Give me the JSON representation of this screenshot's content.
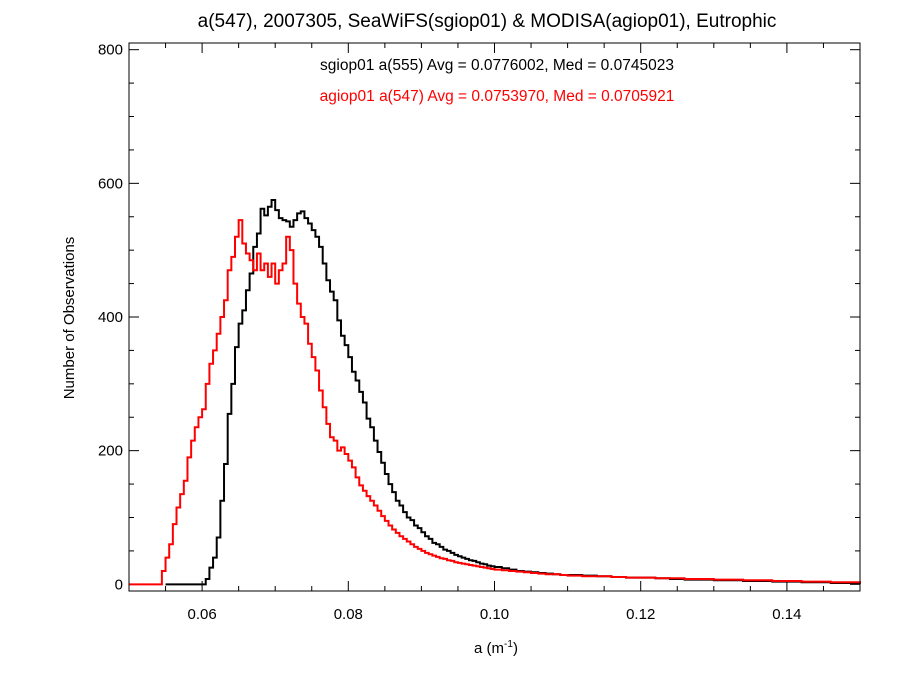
{
  "chart_data": {
    "type": "histogram",
    "title": "a(547), 2007305, SeaWiFS(sgiop01) & MODISA(agiop01), Eutrophic",
    "xlabel": "a (m",
    "xlabel_sup": "-1",
    "xlabel_suffix": ")",
    "ylabel": "Number of Observations",
    "xlim": [
      0.05,
      0.15
    ],
    "ylim": [
      -10,
      810
    ],
    "x_ticks": [
      0.06,
      0.08,
      0.1,
      0.12,
      0.14
    ],
    "x_tick_labels": [
      "0.06",
      "0.08",
      "0.10",
      "0.12",
      "0.14"
    ],
    "y_ticks": [
      0,
      200,
      400,
      600,
      800
    ],
    "y_tick_labels": [
      "0",
      "200",
      "400",
      "600",
      "800"
    ],
    "x_minor_step": 0.005,
    "y_minor_step": 50,
    "grid": false,
    "legend_placement": "top-center",
    "series": [
      {
        "label": "sgiop01 a(555) Avg = 0.0776002, Med = 0.0745023",
        "color": "#000000",
        "points": [
          [
            0.055,
            0
          ],
          [
            0.06,
            0
          ],
          [
            0.0605,
            8
          ],
          [
            0.061,
            25
          ],
          [
            0.0615,
            40
          ],
          [
            0.062,
            70
          ],
          [
            0.0625,
            125
          ],
          [
            0.063,
            180
          ],
          [
            0.0635,
            255
          ],
          [
            0.064,
            300
          ],
          [
            0.0645,
            355
          ],
          [
            0.065,
            390
          ],
          [
            0.0655,
            410
          ],
          [
            0.066,
            440
          ],
          [
            0.0665,
            465
          ],
          [
            0.067,
            505
          ],
          [
            0.0675,
            525
          ],
          [
            0.068,
            562
          ],
          [
            0.0685,
            552
          ],
          [
            0.069,
            565
          ],
          [
            0.0695,
            575
          ],
          [
            0.07,
            560
          ],
          [
            0.0705,
            548
          ],
          [
            0.071,
            545
          ],
          [
            0.0715,
            543
          ],
          [
            0.072,
            535
          ],
          [
            0.0725,
            545
          ],
          [
            0.073,
            555
          ],
          [
            0.0735,
            558
          ],
          [
            0.074,
            548
          ],
          [
            0.0745,
            540
          ],
          [
            0.075,
            530
          ],
          [
            0.0755,
            520
          ],
          [
            0.076,
            505
          ],
          [
            0.0765,
            480
          ],
          [
            0.077,
            455
          ],
          [
            0.0775,
            438
          ],
          [
            0.078,
            425
          ],
          [
            0.0785,
            395
          ],
          [
            0.079,
            372
          ],
          [
            0.0795,
            358
          ],
          [
            0.08,
            340
          ],
          [
            0.0805,
            318
          ],
          [
            0.081,
            305
          ],
          [
            0.0815,
            288
          ],
          [
            0.082,
            272
          ],
          [
            0.0825,
            248
          ],
          [
            0.083,
            235
          ],
          [
            0.0835,
            215
          ],
          [
            0.084,
            198
          ],
          [
            0.0845,
            182
          ],
          [
            0.085,
            165
          ],
          [
            0.0855,
            150
          ],
          [
            0.086,
            138
          ],
          [
            0.0865,
            125
          ],
          [
            0.087,
            118
          ],
          [
            0.0875,
            108
          ],
          [
            0.088,
            100
          ],
          [
            0.0885,
            96
          ],
          [
            0.089,
            88
          ],
          [
            0.0895,
            84
          ],
          [
            0.09,
            78
          ],
          [
            0.0905,
            72
          ],
          [
            0.091,
            68
          ],
          [
            0.0915,
            62
          ],
          [
            0.092,
            60
          ],
          [
            0.0925,
            56
          ],
          [
            0.093,
            52
          ],
          [
            0.0935,
            50
          ],
          [
            0.094,
            47
          ],
          [
            0.0945,
            44
          ],
          [
            0.095,
            42
          ],
          [
            0.0955,
            40
          ],
          [
            0.096,
            38
          ],
          [
            0.0965,
            36
          ],
          [
            0.097,
            35
          ],
          [
            0.0975,
            33
          ],
          [
            0.098,
            31
          ],
          [
            0.0985,
            30
          ],
          [
            0.099,
            28
          ],
          [
            0.0995,
            27
          ],
          [
            0.1,
            26
          ],
          [
            0.101,
            24
          ],
          [
            0.102,
            22
          ],
          [
            0.103,
            20
          ],
          [
            0.104,
            19
          ],
          [
            0.105,
            18
          ],
          [
            0.106,
            17
          ],
          [
            0.107,
            16
          ],
          [
            0.108,
            15
          ],
          [
            0.109,
            14
          ],
          [
            0.11,
            14
          ],
          [
            0.112,
            13
          ],
          [
            0.114,
            12
          ],
          [
            0.116,
            11
          ],
          [
            0.118,
            10
          ],
          [
            0.12,
            10
          ],
          [
            0.122,
            9
          ],
          [
            0.124,
            8
          ],
          [
            0.126,
            7
          ],
          [
            0.128,
            7
          ],
          [
            0.13,
            6
          ],
          [
            0.132,
            6
          ],
          [
            0.134,
            5
          ],
          [
            0.136,
            5
          ],
          [
            0.138,
            4
          ],
          [
            0.14,
            4
          ],
          [
            0.142,
            3
          ],
          [
            0.144,
            3
          ],
          [
            0.146,
            2
          ],
          [
            0.148,
            2
          ],
          [
            0.15,
            1
          ]
        ]
      },
      {
        "label": "agiop01 a(547) Avg = 0.0753970, Med = 0.0705921",
        "color": "#ff0000",
        "points": [
          [
            0.05,
            0
          ],
          [
            0.054,
            0
          ],
          [
            0.0545,
            20
          ],
          [
            0.055,
            40
          ],
          [
            0.0555,
            60
          ],
          [
            0.056,
            90
          ],
          [
            0.0565,
            115
          ],
          [
            0.057,
            135
          ],
          [
            0.0575,
            155
          ],
          [
            0.058,
            190
          ],
          [
            0.0585,
            215
          ],
          [
            0.059,
            235
          ],
          [
            0.0595,
            250
          ],
          [
            0.06,
            262
          ],
          [
            0.0605,
            300
          ],
          [
            0.061,
            330
          ],
          [
            0.0615,
            350
          ],
          [
            0.062,
            375
          ],
          [
            0.0625,
            400
          ],
          [
            0.063,
            425
          ],
          [
            0.0635,
            470
          ],
          [
            0.064,
            490
          ],
          [
            0.0645,
            520
          ],
          [
            0.065,
            545
          ],
          [
            0.0655,
            510
          ],
          [
            0.066,
            495
          ],
          [
            0.0665,
            485
          ],
          [
            0.067,
            470
          ],
          [
            0.0675,
            495
          ],
          [
            0.068,
            470
          ],
          [
            0.0685,
            480
          ],
          [
            0.069,
            460
          ],
          [
            0.0695,
            480
          ],
          [
            0.07,
            450
          ],
          [
            0.0705,
            470
          ],
          [
            0.071,
            480
          ],
          [
            0.0715,
            520
          ],
          [
            0.072,
            500
          ],
          [
            0.0725,
            450
          ],
          [
            0.073,
            420
          ],
          [
            0.0735,
            400
          ],
          [
            0.074,
            390
          ],
          [
            0.0745,
            360
          ],
          [
            0.075,
            340
          ],
          [
            0.0755,
            320
          ],
          [
            0.076,
            290
          ],
          [
            0.0765,
            265
          ],
          [
            0.077,
            240
          ],
          [
            0.0775,
            220
          ],
          [
            0.078,
            215
          ],
          [
            0.0785,
            200
          ],
          [
            0.079,
            205
          ],
          [
            0.0795,
            195
          ],
          [
            0.08,
            185
          ],
          [
            0.0805,
            175
          ],
          [
            0.081,
            160
          ],
          [
            0.0815,
            148
          ],
          [
            0.082,
            140
          ],
          [
            0.0825,
            132
          ],
          [
            0.083,
            125
          ],
          [
            0.0835,
            118
          ],
          [
            0.084,
            110
          ],
          [
            0.0845,
            102
          ],
          [
            0.085,
            95
          ],
          [
            0.0855,
            88
          ],
          [
            0.086,
            82
          ],
          [
            0.0865,
            77
          ],
          [
            0.087,
            72
          ],
          [
            0.0875,
            68
          ],
          [
            0.088,
            64
          ],
          [
            0.0885,
            60
          ],
          [
            0.089,
            56
          ],
          [
            0.0895,
            53
          ],
          [
            0.09,
            50
          ],
          [
            0.0905,
            47
          ],
          [
            0.091,
            45
          ],
          [
            0.0915,
            43
          ],
          [
            0.092,
            41
          ],
          [
            0.0925,
            39
          ],
          [
            0.093,
            38
          ],
          [
            0.0935,
            36
          ],
          [
            0.094,
            35
          ],
          [
            0.0945,
            33
          ],
          [
            0.095,
            32
          ],
          [
            0.0955,
            31
          ],
          [
            0.096,
            30
          ],
          [
            0.0965,
            29
          ],
          [
            0.097,
            28
          ],
          [
            0.0975,
            27
          ],
          [
            0.098,
            26
          ],
          [
            0.0985,
            25
          ],
          [
            0.099,
            24
          ],
          [
            0.0995,
            23
          ],
          [
            0.1,
            22
          ],
          [
            0.101,
            21
          ],
          [
            0.102,
            20
          ],
          [
            0.103,
            19
          ],
          [
            0.104,
            18
          ],
          [
            0.105,
            17
          ],
          [
            0.106,
            16
          ],
          [
            0.107,
            15
          ],
          [
            0.108,
            15
          ],
          [
            0.109,
            14
          ],
          [
            0.11,
            13
          ],
          [
            0.112,
            12
          ],
          [
            0.114,
            12
          ],
          [
            0.116,
            11
          ],
          [
            0.118,
            10
          ],
          [
            0.12,
            10
          ],
          [
            0.122,
            9
          ],
          [
            0.124,
            9
          ],
          [
            0.126,
            8
          ],
          [
            0.128,
            8
          ],
          [
            0.13,
            7
          ],
          [
            0.132,
            7
          ],
          [
            0.134,
            6
          ],
          [
            0.136,
            6
          ],
          [
            0.138,
            5
          ],
          [
            0.14,
            5
          ],
          [
            0.142,
            4
          ],
          [
            0.144,
            4
          ],
          [
            0.146,
            3
          ],
          [
            0.148,
            3
          ],
          [
            0.15,
            2
          ]
        ]
      }
    ]
  }
}
